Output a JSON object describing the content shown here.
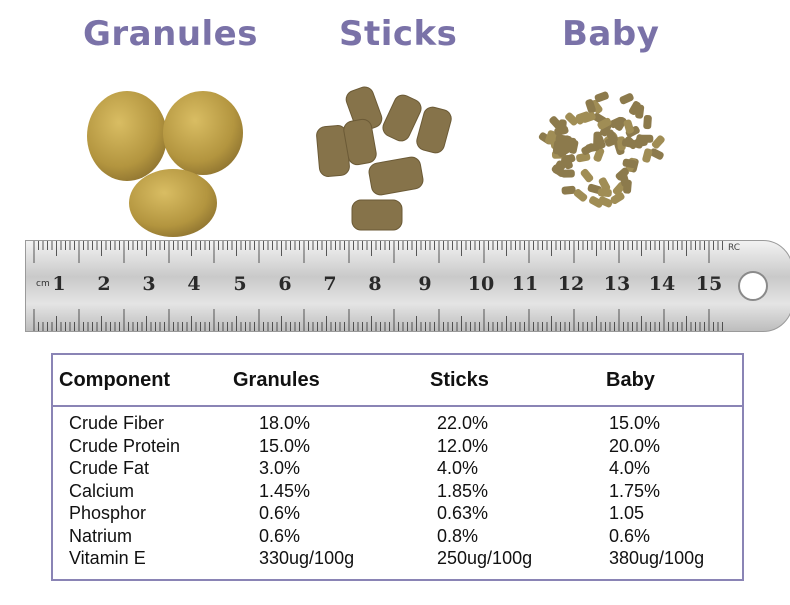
{
  "titles": {
    "granules": "Granules",
    "sticks": "Sticks",
    "baby": "Baby"
  },
  "ruler": {
    "unit": "cm",
    "numbers": [
      "1",
      "2",
      "3",
      "4",
      "5",
      "6",
      "7",
      "8",
      "9",
      "10",
      "11",
      "12",
      "13",
      "14",
      "15"
    ],
    "mark": "RC"
  },
  "table": {
    "headers": [
      "Component",
      "Granules",
      "Sticks",
      "Baby"
    ],
    "rows": [
      [
        "Crude Fiber",
        "18.0%",
        "22.0%",
        "15.0%"
      ],
      [
        "Crude Protein",
        "15.0%",
        "12.0%",
        "20.0%"
      ],
      [
        "Crude Fat",
        "3.0%",
        "4.0%",
        "4.0%"
      ],
      [
        "Calcium",
        "1.45%",
        "1.85%",
        "1.75%"
      ],
      [
        "Phosphor",
        "0.6%",
        "0.63%",
        "1.05"
      ],
      [
        "Natrium",
        "0.6%",
        "0.8%",
        "0.6%"
      ],
      [
        "Vitamin E",
        "330ug/100g",
        "250ug/100g",
        "380ug/100g"
      ]
    ]
  },
  "colors": {
    "title": "#7a72a8",
    "table_border": "#8a84b5",
    "pellet_light": "#b89a45",
    "pellet_dark": "#7d6a3e"
  }
}
